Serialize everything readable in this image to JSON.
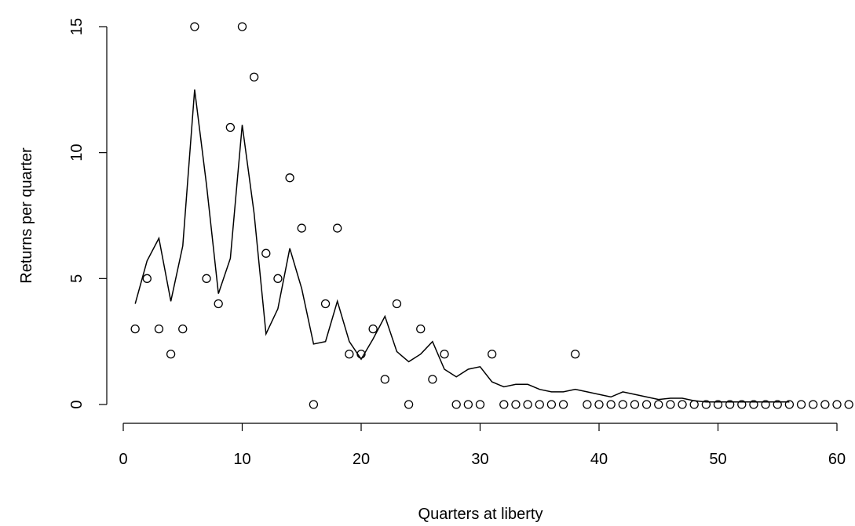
{
  "chart_data": {
    "type": "scatter",
    "title": "",
    "xlabel": "Quarters at liberty",
    "ylabel": "Returns per quarter",
    "xlim": [
      0,
      61
    ],
    "ylim": [
      0,
      15
    ],
    "x_ticks": [
      0,
      10,
      20,
      30,
      40,
      50,
      60
    ],
    "y_ticks": [
      0,
      5,
      10,
      15
    ],
    "grid": false,
    "series": [
      {
        "type": "scatter",
        "marker": "open-circle",
        "x": [
          1,
          2,
          3,
          4,
          5,
          6,
          7,
          8,
          9,
          10,
          11,
          12,
          13,
          14,
          15,
          16,
          17,
          18,
          19,
          20,
          21,
          22,
          23,
          24,
          25,
          26,
          27,
          28,
          29,
          30,
          31,
          32,
          33,
          34,
          35,
          36,
          37,
          38,
          39,
          40,
          41,
          42,
          43,
          44,
          45,
          46,
          47,
          48,
          49,
          50,
          51,
          52,
          53,
          54,
          55,
          56,
          57,
          58,
          59,
          60,
          61
        ],
        "y": [
          3,
          5,
          3,
          2,
          3,
          15,
          5,
          4,
          11,
          15,
          13,
          6,
          5,
          9,
          7,
          0,
          4,
          7,
          2,
          2,
          3,
          1,
          4,
          0,
          3,
          1,
          2,
          0,
          0,
          0,
          2,
          0,
          0,
          0,
          0,
          0,
          0,
          2,
          0,
          0,
          0,
          0,
          0,
          0,
          0,
          0,
          0,
          0,
          0,
          0,
          0,
          0,
          0,
          0,
          0,
          0,
          0,
          0,
          0,
          0,
          0
        ]
      },
      {
        "type": "line",
        "color": "#000000",
        "x": [
          1,
          2,
          3,
          4,
          5,
          6,
          7,
          8,
          9,
          10,
          11,
          12,
          13,
          14,
          15,
          16,
          17,
          18,
          19,
          20,
          21,
          22,
          23,
          24,
          25,
          26,
          27,
          28,
          29,
          30,
          31,
          32,
          33,
          34,
          35,
          36,
          37,
          38,
          39,
          40,
          41,
          42,
          43,
          44,
          45,
          46,
          47,
          48,
          49,
          50,
          51,
          52,
          53,
          54,
          55,
          56
        ],
        "y": [
          4.0,
          5.7,
          6.6,
          4.1,
          6.3,
          12.5,
          8.7,
          4.4,
          5.8,
          11.1,
          7.6,
          2.8,
          3.8,
          6.2,
          4.6,
          2.4,
          2.5,
          4.1,
          2.5,
          1.8,
          2.6,
          3.5,
          2.1,
          1.7,
          2.0,
          2.5,
          1.4,
          1.1,
          1.4,
          1.5,
          0.9,
          0.7,
          0.8,
          0.8,
          0.6,
          0.5,
          0.5,
          0.6,
          0.5,
          0.4,
          0.3,
          0.5,
          0.4,
          0.3,
          0.2,
          0.25,
          0.25,
          0.15,
          0.1,
          0.1,
          0.1,
          0.1,
          0.1,
          0.1,
          0.1,
          0.1
        ]
      }
    ]
  }
}
